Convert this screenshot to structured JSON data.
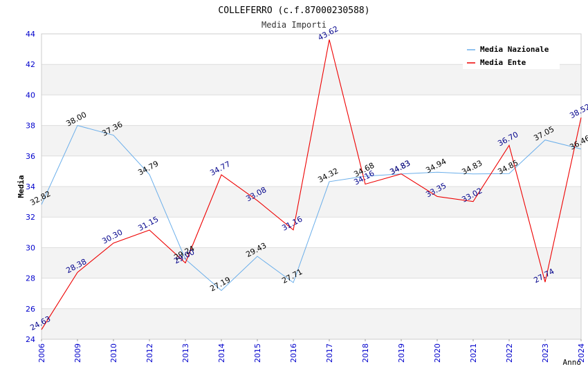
{
  "chart_data": {
    "type": "line",
    "title": "COLLEFERRO (c.f.87000230588)",
    "subtitle": "Media Importi",
    "xlabel": "Anno",
    "ylabel": "Media",
    "ylim": [
      24,
      44
    ],
    "yticks": [
      24,
      26,
      28,
      30,
      32,
      34,
      36,
      38,
      40,
      42,
      44
    ],
    "grid": true,
    "legend_position": "top-right",
    "categories": [
      "2006",
      "2009",
      "2010",
      "2012",
      "2013",
      "2014",
      "2015",
      "2016",
      "2017",
      "2018",
      "2019",
      "2020",
      "2021",
      "2022",
      "2023",
      "2024"
    ],
    "series": [
      {
        "name": "Media Nazionale",
        "color": "#6aaeea",
        "label_color": "#000000",
        "values": [
          32.82,
          38.0,
          37.36,
          34.79,
          29.24,
          27.19,
          29.43,
          27.71,
          34.32,
          34.68,
          34.83,
          34.94,
          34.83,
          34.85,
          37.05,
          36.46
        ],
        "labels": [
          "32.82",
          "38.00",
          "37.36",
          "34.79",
          "29.24",
          "27.19",
          "29.43",
          "27.71",
          "34.32",
          "34.68",
          "34.83",
          "34.94",
          "34.83",
          "34.85",
          "37.05",
          "36.46"
        ]
      },
      {
        "name": "Media Ente",
        "color": "#ee0000",
        "label_color": "#00008b",
        "values": [
          24.63,
          28.38,
          30.3,
          31.15,
          29.0,
          34.77,
          33.08,
          31.16,
          43.62,
          34.16,
          34.83,
          33.35,
          33.02,
          36.7,
          27.74,
          38.52
        ],
        "labels": [
          "24.63",
          "28.38",
          "30.30",
          "31.15",
          "29.00",
          "34.77",
          "33.08",
          "31.16",
          "43.62",
          "34.16",
          "34.83",
          "33.35",
          "33.02",
          "36.70",
          "27.74",
          "38.52"
        ]
      }
    ]
  },
  "colors": {
    "axis_tick_text": "#0000cc",
    "band": "#f3f3f3",
    "gridline": "#dddddd"
  }
}
